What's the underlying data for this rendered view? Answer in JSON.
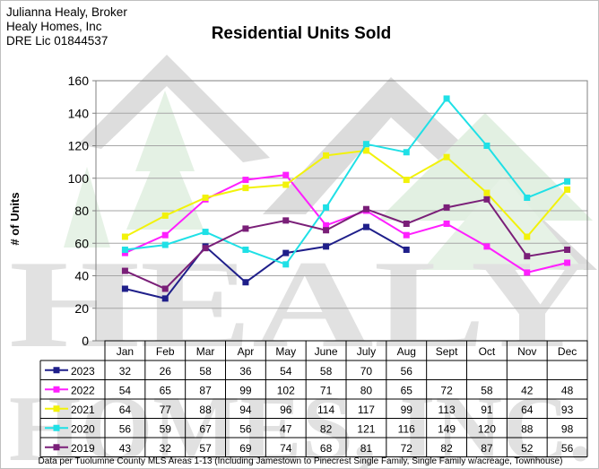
{
  "header": {
    "line1": "Julianna Healy, Broker",
    "line2": "Healy Homes, Inc",
    "line3": "DRE Lic 01844537"
  },
  "watermark": {
    "text_line1": "HEALY",
    "text_line2": "HOMES, INC."
  },
  "footnote": "Data per Tuolumne County MLS Areas 1-13 (Including Jamestown to Pinecrest Single Family, Single Family w/acreage, Townhouse)",
  "chart_data": {
    "type": "line",
    "title": "Residential Units Sold",
    "xlabel": "",
    "ylabel": "# of Units",
    "ylim": [
      0,
      160
    ],
    "yticks": [
      0,
      20,
      40,
      60,
      80,
      100,
      120,
      140,
      160
    ],
    "grid": true,
    "legend": "data table below plot",
    "categories": [
      "Jan",
      "Feb",
      "Mar",
      "Apr",
      "May",
      "June",
      "July",
      "Aug",
      "Sept",
      "Oct",
      "Nov",
      "Dec"
    ],
    "series": [
      {
        "name": "2023",
        "color": "#1f1f8a",
        "values": [
          32,
          26,
          58,
          36,
          54,
          58,
          70,
          56,
          null,
          null,
          null,
          null
        ]
      },
      {
        "name": "2022",
        "color": "#ff1fff",
        "values": [
          54,
          65,
          87,
          99,
          102,
          71,
          80,
          65,
          72,
          58,
          42,
          48
        ]
      },
      {
        "name": "2021",
        "color": "#f2f20a",
        "values": [
          64,
          77,
          88,
          94,
          96,
          114,
          117,
          99,
          113,
          91,
          64,
          93
        ]
      },
      {
        "name": "2020",
        "color": "#1fe0e6",
        "values": [
          56,
          59,
          67,
          56,
          47,
          82,
          121,
          116,
          149,
          120,
          88,
          98
        ]
      },
      {
        "name": "2019",
        "color": "#7a1f78",
        "values": [
          43,
          32,
          57,
          69,
          74,
          68,
          81,
          72,
          82,
          87,
          52,
          56
        ]
      }
    ]
  }
}
